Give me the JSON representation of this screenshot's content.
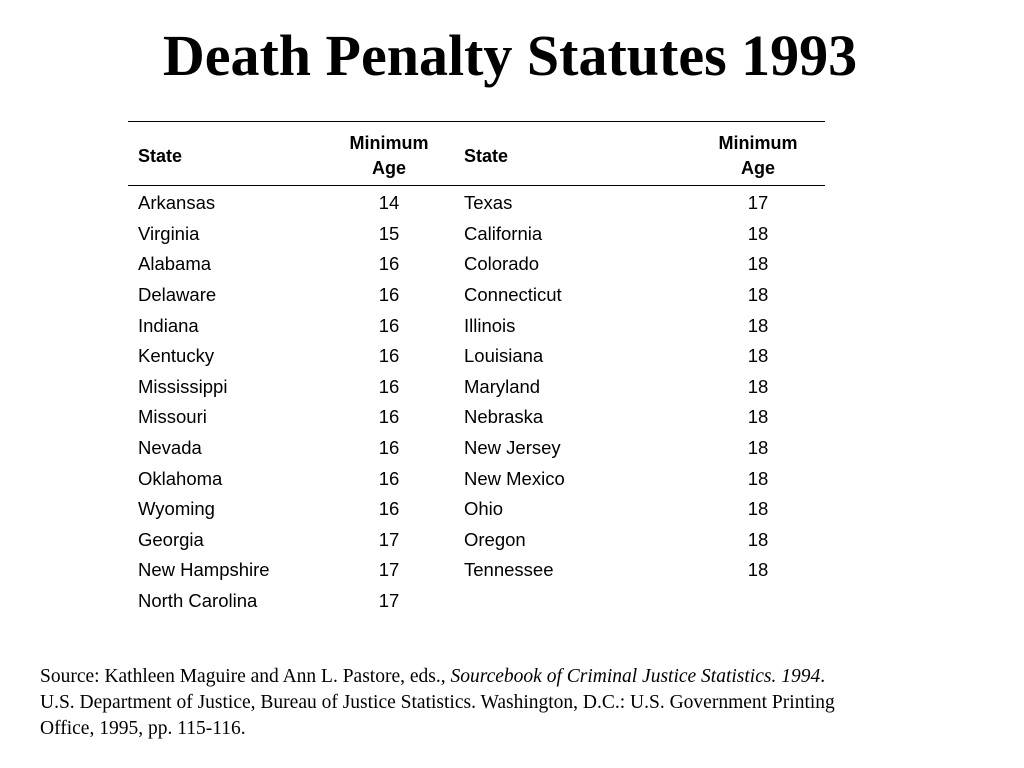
{
  "title": "Death Penalty Statutes 1993",
  "table": {
    "headers": {
      "state": "State",
      "age_line1": "Minimum",
      "age_line2": "Age"
    },
    "left": [
      {
        "state": "Arkansas",
        "age": "14"
      },
      {
        "state": "Virginia",
        "age": "15"
      },
      {
        "state": "Alabama",
        "age": "16"
      },
      {
        "state": "Delaware",
        "age": "16"
      },
      {
        "state": "Indiana",
        "age": "16"
      },
      {
        "state": "Kentucky",
        "age": "16"
      },
      {
        "state": "Mississippi",
        "age": "16"
      },
      {
        "state": "Missouri",
        "age": "16"
      },
      {
        "state": "Nevada",
        "age": "16"
      },
      {
        "state": "Oklahoma",
        "age": "16"
      },
      {
        "state": "Wyoming",
        "age": "16"
      },
      {
        "state": "Georgia",
        "age": "17"
      },
      {
        "state": "New Hampshire",
        "age": "17"
      },
      {
        "state": "North Carolina",
        "age": "17"
      }
    ],
    "right": [
      {
        "state": "Texas",
        "age": "17"
      },
      {
        "state": "California",
        "age": "18"
      },
      {
        "state": "Colorado",
        "age": "18"
      },
      {
        "state": "Connecticut",
        "age": "18"
      },
      {
        "state": "Illinois",
        "age": "18"
      },
      {
        "state": "Louisiana",
        "age": "18"
      },
      {
        "state": "Maryland",
        "age": "18"
      },
      {
        "state": "Nebraska",
        "age": "18"
      },
      {
        "state": "New Jersey",
        "age": "18"
      },
      {
        "state": "New Mexico",
        "age": "18"
      },
      {
        "state": "Ohio",
        "age": "18"
      },
      {
        "state": "Oregon",
        "age": "18"
      },
      {
        "state": "Tennessee",
        "age": "18"
      }
    ]
  },
  "source": {
    "prefix": "Source:  Kathleen Maguire and Ann L. Pastore, eds., ",
    "italic": "Sourcebook of Criminal Justice Statistics. 1994",
    "suffix": ". U.S. Department of Justice, Bureau of Justice Statistics. Washington, D.C.: U.S. Government Printing Office, 1995, pp. 115-116."
  }
}
